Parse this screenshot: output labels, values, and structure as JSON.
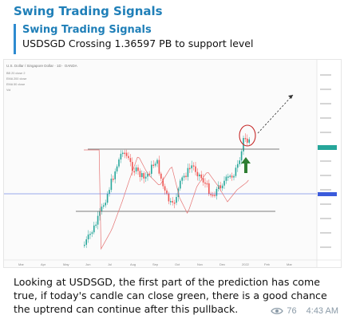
{
  "message": {
    "channel_name": "Swing Trading Signals",
    "reply_title": "Swing Trading Signals",
    "reply_text": "USDSGD Crossing 1.36597 PB to support level",
    "body": "Looking at USDSGD, the first part of the prediction has come true, if today's candle can close green, there is a good chance the uptrend can continue after this pullback.",
    "views": "76",
    "time": "4:43 AM",
    "view_icon": "eye-icon"
  },
  "chart": {
    "header": "U.S. Dollar / Singapore Dollar · 1D · OANDA",
    "indicators": [
      "BB 20 close 2",
      "EMA 200 close",
      "EMA 50 close",
      "Vol"
    ],
    "x_labels": [
      "Mar",
      "Apr",
      "May",
      "Jun",
      "Jul",
      "Aug",
      "Sep",
      "Oct",
      "Nov",
      "Dec",
      "2022",
      "Feb",
      "Mar"
    ],
    "colors": {
      "up": "#26a69a",
      "down": "#ef5350",
      "resistance": "#555555",
      "support_blue": "#3b5bdb",
      "annotation": "#c62828",
      "arrow": "#2e7d32"
    }
  }
}
